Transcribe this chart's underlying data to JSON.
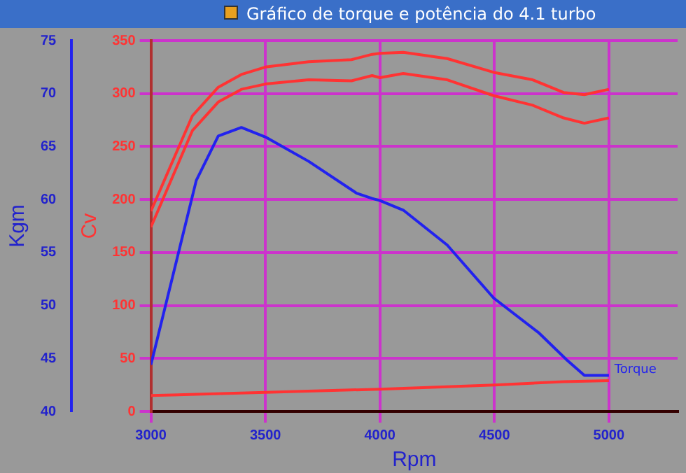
{
  "chart_data": {
    "type": "line",
    "title": "Gráfico de torque e potência do 4.1 turbo",
    "xlabel": "Rpm",
    "ylabel": "Cv",
    "y2label": "Kgm",
    "xlim": [
      3000,
      5300
    ],
    "xticks": [
      3000,
      3500,
      4000,
      4500,
      5000
    ],
    "ylim": [
      0,
      350
    ],
    "yticks": [
      0,
      50,
      100,
      150,
      200,
      250,
      300,
      350
    ],
    "y2lim": [
      40,
      75
    ],
    "y2ticks": [
      40,
      45,
      50,
      55,
      60,
      65,
      70,
      75
    ],
    "grid": true,
    "legend": false,
    "marker": "none",
    "line_style": "solid",
    "series": [
      {
        "color": "#ff3333",
        "x": [
          3000,
          3181,
          3294,
          3395,
          3500,
          3689,
          3876,
          3966,
          4000,
          4102,
          4294,
          4497,
          4667,
          4802,
          4893,
          5000
        ],
        "values": [
          189,
          279,
          306,
          318,
          325,
          330,
          332,
          337,
          338,
          339,
          333,
          320,
          313,
          301,
          299,
          304
        ]
      },
      {
        "color": "#ff3333",
        "x": [
          3000,
          3181,
          3294,
          3395,
          3500,
          3689,
          3876,
          3966,
          4000,
          4102,
          4294,
          4497,
          4667,
          4802,
          4893,
          5000
        ],
        "values": [
          174,
          265,
          292,
          304,
          309,
          313,
          312,
          317,
          315,
          319,
          313,
          298,
          289,
          277,
          272,
          277
        ]
      },
      {
        "name": "Torque",
        "color": "#2222ee",
        "axis": "y2",
        "x": [
          3000,
          3198,
          3294,
          3395,
          3500,
          3689,
          3898,
          3966,
          4000,
          4102,
          4294,
          4497,
          4695,
          4819,
          4893,
          5000
        ],
        "values": [
          44.4,
          61.8,
          66.0,
          66.8,
          65.9,
          63.6,
          60.6,
          60.1,
          59.9,
          59.0,
          55.7,
          50.7,
          47.4,
          44.8,
          43.4,
          43.4
        ]
      },
      {
        "color": "#ff3333",
        "x": [
          3000,
          3500,
          4000,
          4500,
          4800,
          5000
        ],
        "values": [
          15,
          18,
          21,
          25,
          28,
          29
        ]
      }
    ]
  }
}
